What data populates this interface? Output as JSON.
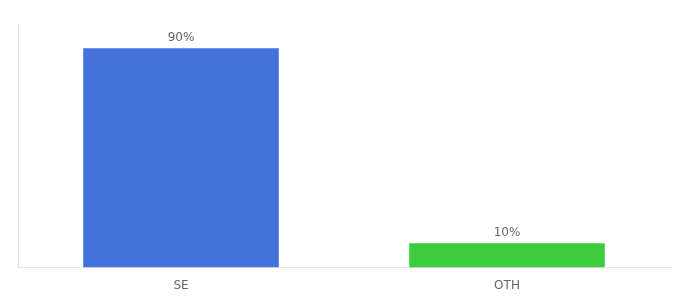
{
  "chart_data": {
    "type": "bar",
    "categories": [
      "SE",
      "OTH"
    ],
    "values": [
      90,
      10
    ],
    "value_labels": [
      "90%",
      "10%"
    ],
    "colors": [
      "#4472db",
      "#3dcc3d"
    ],
    "ylim": [
      0,
      100
    ],
    "data_labels": true,
    "tick_labels": "x",
    "grid": false
  }
}
